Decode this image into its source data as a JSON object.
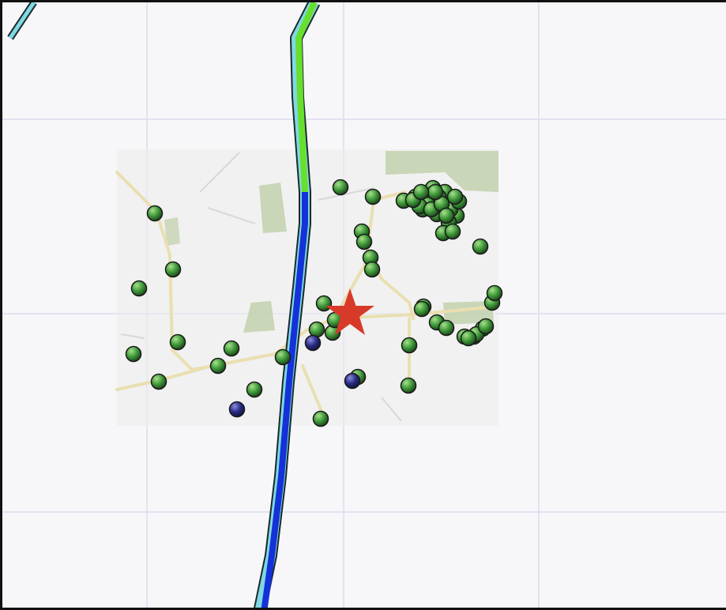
{
  "map": {
    "colors": {
      "background": "#f7f7f9",
      "grid": "#dcdcf0",
      "basemap_bg": "#ececec",
      "road": "#e9dfb0",
      "park": "#bfcfa8",
      "route_main": "#1432d8",
      "route_green": "#66e02c",
      "route_cyan": "#7fd8e4",
      "route_outline": "#1a2a2a",
      "node_green": "#3f9a3a",
      "node_blue": "#2a2d86",
      "star": "#d83a2a"
    },
    "icons": {
      "star": "star-icon",
      "node": "circle-marker-icon"
    },
    "node_counts": {
      "green": 66,
      "blue": 3
    }
  }
}
